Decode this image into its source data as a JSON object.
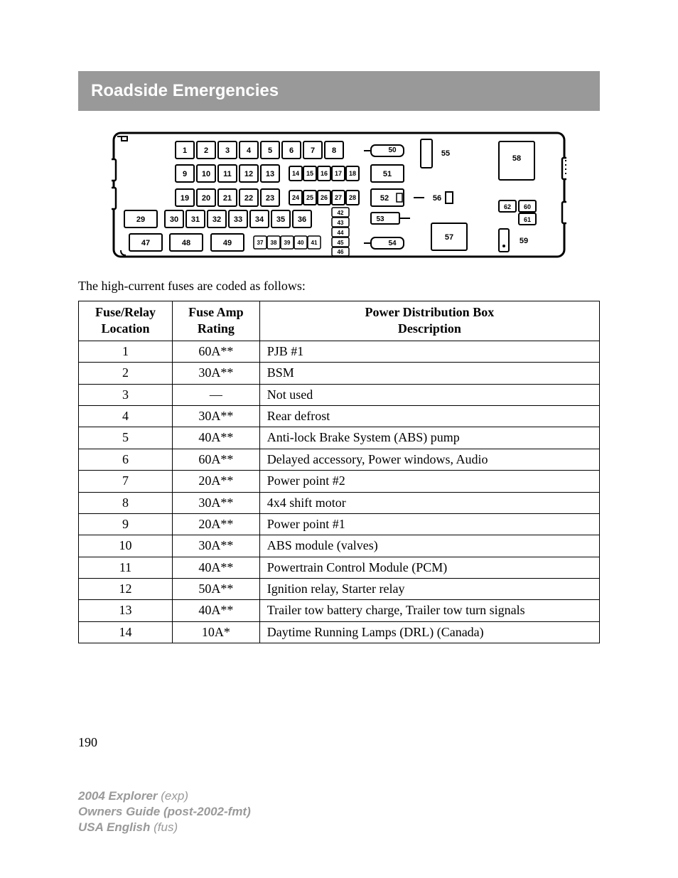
{
  "header": {
    "title": "Roadside Emergencies"
  },
  "diagram": {
    "row1": [
      "1",
      "2",
      "3",
      "4",
      "5",
      "6",
      "7",
      "8"
    ],
    "row1_right": "50",
    "row1_far": "55",
    "row1_corner": "58",
    "row2_left": [
      "9",
      "10",
      "11",
      "12",
      "13"
    ],
    "row2_right": [
      "14",
      "15",
      "16",
      "17",
      "18"
    ],
    "row2_far": "51",
    "row3_left": [
      "19",
      "20",
      "21",
      "22",
      "23"
    ],
    "row3_right": [
      "24",
      "25",
      "26",
      "27",
      "28"
    ],
    "row3_far": "52",
    "row3_far2": "56",
    "row3_corner": [
      "62",
      "60",
      "61"
    ],
    "row4_big": "29",
    "row4_left": [
      "30",
      "31",
      "32",
      "33",
      "34",
      "35",
      "36"
    ],
    "row4_stack": [
      "42",
      "43",
      "44",
      "45",
      "46"
    ],
    "row4_far": "53",
    "row5_left": [
      "47",
      "48",
      "49"
    ],
    "row5_tiny": [
      "37",
      "38",
      "39",
      "40",
      "41"
    ],
    "row5_far": "54",
    "row5_far2": "57",
    "row5_corner": "59"
  },
  "intro": "The high-current fuses are coded as follows:",
  "table": {
    "headers": {
      "col1_line1": "Fuse/Relay",
      "col1_line2": "Location",
      "col2_line1": "Fuse Amp",
      "col2_line2": "Rating",
      "col3_line1": "Power Distribution Box",
      "col3_line2": "Description"
    },
    "rows": [
      {
        "loc": "1",
        "amp": "60A**",
        "desc": "PJB #1"
      },
      {
        "loc": "2",
        "amp": "30A**",
        "desc": "BSM"
      },
      {
        "loc": "3",
        "amp": "—",
        "desc": "Not used"
      },
      {
        "loc": "4",
        "amp": "30A**",
        "desc": "Rear defrost"
      },
      {
        "loc": "5",
        "amp": "40A**",
        "desc": "Anti-lock Brake System (ABS) pump"
      },
      {
        "loc": "6",
        "amp": "60A**",
        "desc": "Delayed accessory, Power windows, Audio"
      },
      {
        "loc": "7",
        "amp": "20A**",
        "desc": "Power point #2"
      },
      {
        "loc": "8",
        "amp": "30A**",
        "desc": "4x4 shift motor"
      },
      {
        "loc": "9",
        "amp": "20A**",
        "desc": "Power point #1"
      },
      {
        "loc": "10",
        "amp": "30A**",
        "desc": "ABS module (valves)"
      },
      {
        "loc": "11",
        "amp": "40A**",
        "desc": "Powertrain Control Module (PCM)"
      },
      {
        "loc": "12",
        "amp": "50A**",
        "desc": "Ignition relay, Starter relay"
      },
      {
        "loc": "13",
        "amp": "40A**",
        "desc": "Trailer tow battery charge, Trailer tow turn signals"
      },
      {
        "loc": "14",
        "amp": "10A*",
        "desc": "Daytime Running Lamps (DRL) (Canada)"
      }
    ]
  },
  "pageNumber": "190",
  "footer": {
    "line1a": "2004 Explorer",
    "line1b": "(exp)",
    "line2": "Owners Guide (post-2002-fmt)",
    "line3a": "USA English",
    "line3b": "(fus)"
  }
}
